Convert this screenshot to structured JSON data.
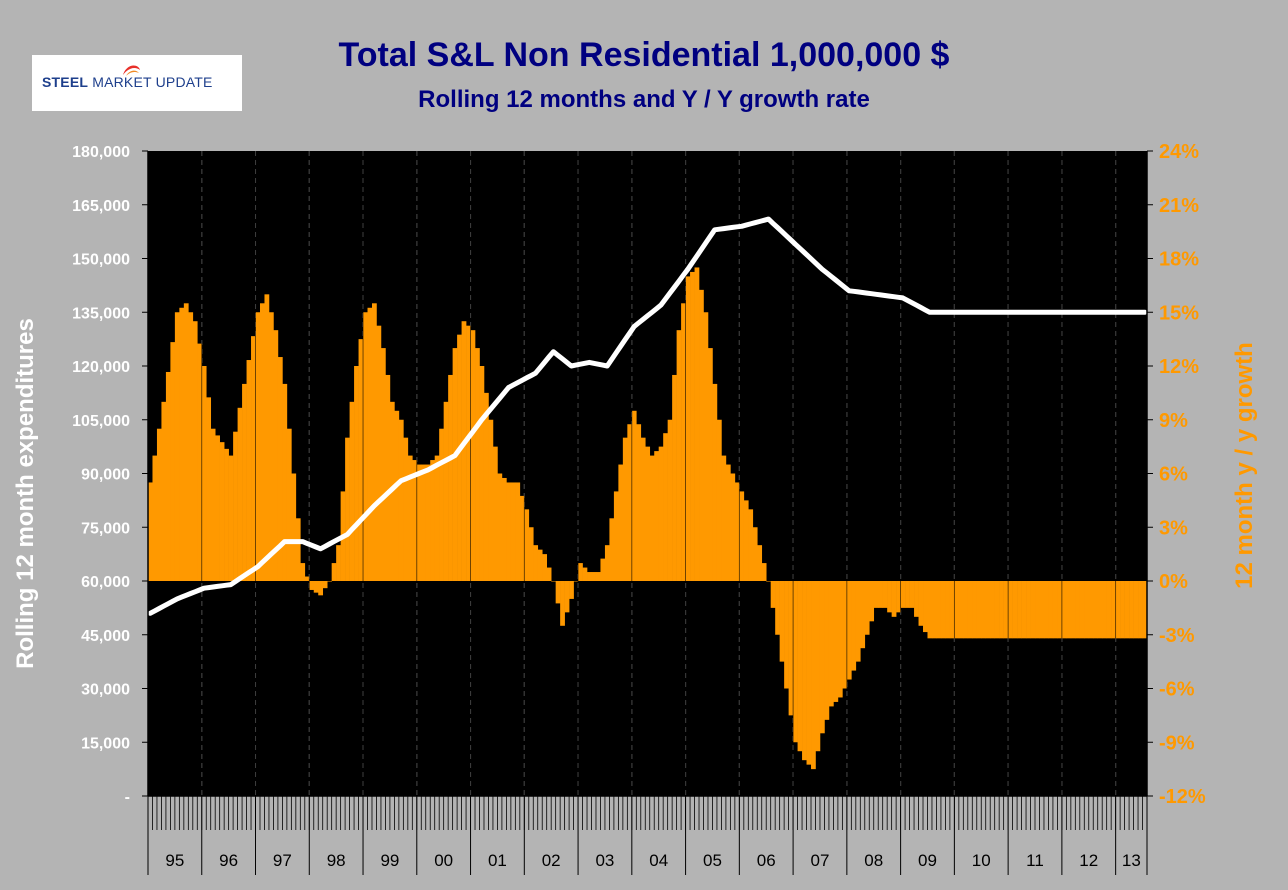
{
  "logo": {
    "bold": "STEEL",
    "light_1": "MARKET",
    "light_2": "UPDATE"
  },
  "chart_data": {
    "type": "bar+line",
    "title": "Total S&L Non Residential 1,000,000 $",
    "subtitle": "Rolling 12 months and Y / Y growth rate",
    "ylabel_left": "Rolling 12 month expenditures",
    "ylabel_right": "12 month y / y growth",
    "ylim_left": [
      0,
      180000
    ],
    "ylim_right": [
      -12,
      24
    ],
    "left_ticks": [
      "-",
      "15,000",
      "30,000",
      "45,000",
      "60,000",
      "75,000",
      "90,000",
      "105,000",
      "120,000",
      "135,000",
      "150,000",
      "165,000",
      "180,000"
    ],
    "right_ticks": [
      "-12%",
      "-9%",
      "-6%",
      "-3%",
      "0%",
      "3%",
      "6%",
      "9%",
      "12%",
      "15%",
      "18%",
      "21%",
      "24%"
    ],
    "years": [
      "95",
      "96",
      "97",
      "98",
      "99",
      "00",
      "01",
      "02",
      "03",
      "04",
      "05",
      "06",
      "07",
      "08",
      "09",
      "10",
      "11",
      "12",
      "13"
    ],
    "months_per_year": 12,
    "last_year_months": 7,
    "series": [
      {
        "name": "12 month y/y growth (%)",
        "axis": "right",
        "style": "bars",
        "color": "#ff9900",
        "anchors": [
          [
            0,
            5.5
          ],
          [
            3,
            10
          ],
          [
            6,
            15
          ],
          [
            8,
            15.5
          ],
          [
            10,
            14.5
          ],
          [
            12,
            12
          ],
          [
            14,
            8.5
          ],
          [
            18,
            7
          ],
          [
            21,
            11
          ],
          [
            24,
            15
          ],
          [
            26,
            16
          ],
          [
            28,
            14
          ],
          [
            30,
            11
          ],
          [
            32,
            6
          ],
          [
            34,
            1
          ],
          [
            36,
            -0.5
          ],
          [
            38,
            -0.8
          ],
          [
            40,
            0
          ],
          [
            42,
            2
          ],
          [
            44,
            8
          ],
          [
            46,
            12
          ],
          [
            48,
            15
          ],
          [
            50,
            15.5
          ],
          [
            52,
            13
          ],
          [
            54,
            10
          ],
          [
            56,
            9
          ],
          [
            58,
            7
          ],
          [
            60,
            6.5
          ],
          [
            62,
            6.5
          ],
          [
            64,
            7
          ],
          [
            66,
            10
          ],
          [
            68,
            13
          ],
          [
            70,
            14.5
          ],
          [
            72,
            14
          ],
          [
            74,
            12
          ],
          [
            76,
            9
          ],
          [
            78,
            6
          ],
          [
            80,
            5.5
          ],
          [
            82,
            5.5
          ],
          [
            84,
            4
          ],
          [
            86,
            2
          ],
          [
            88,
            1.5
          ],
          [
            90,
            0
          ],
          [
            92,
            -2.5
          ],
          [
            94,
            -1
          ],
          [
            96,
            1
          ],
          [
            98,
            0.5
          ],
          [
            100,
            0.5
          ],
          [
            102,
            2
          ],
          [
            104,
            5
          ],
          [
            106,
            8
          ],
          [
            108,
            9.5
          ],
          [
            110,
            8
          ],
          [
            112,
            7
          ],
          [
            114,
            7.5
          ],
          [
            116,
            9
          ],
          [
            118,
            14
          ],
          [
            120,
            17
          ],
          [
            122,
            17.5
          ],
          [
            124,
            15
          ],
          [
            126,
            11
          ],
          [
            128,
            7
          ],
          [
            130,
            6
          ],
          [
            132,
            5
          ],
          [
            134,
            4
          ],
          [
            136,
            2
          ],
          [
            138,
            0
          ],
          [
            140,
            -3
          ],
          [
            142,
            -6
          ],
          [
            144,
            -9
          ],
          [
            146,
            -10
          ],
          [
            148,
            -10.5
          ],
          [
            150,
            -8.5
          ],
          [
            152,
            -7
          ],
          [
            154,
            -6.5
          ],
          [
            156,
            -5.5
          ],
          [
            158,
            -4.5
          ],
          [
            160,
            -3
          ],
          [
            162,
            -1.5
          ],
          [
            164,
            -1.5
          ],
          [
            166,
            -2
          ],
          [
            168,
            -1.5
          ],
          [
            170,
            -1.5
          ],
          [
            172,
            -2.5
          ],
          [
            174,
            -3.2
          ]
        ]
      },
      {
        "name": "Rolling 12 month expenditures",
        "axis": "left",
        "style": "line",
        "color": "#ffffff",
        "anchors": [
          [
            0,
            51000
          ],
          [
            6,
            55000
          ],
          [
            12,
            58000
          ],
          [
            18,
            59000
          ],
          [
            24,
            64000
          ],
          [
            30,
            71000
          ],
          [
            34,
            71000
          ],
          [
            38,
            69000
          ],
          [
            44,
            73000
          ],
          [
            50,
            81000
          ],
          [
            56,
            88000
          ],
          [
            62,
            91000
          ],
          [
            68,
            95000
          ],
          [
            74,
            105000
          ],
          [
            80,
            114000
          ],
          [
            86,
            118000
          ],
          [
            90,
            124000
          ],
          [
            94,
            120000
          ],
          [
            98,
            121000
          ],
          [
            102,
            120000
          ],
          [
            108,
            131000
          ],
          [
            114,
            137000
          ],
          [
            120,
            147000
          ],
          [
            126,
            158000
          ],
          [
            132,
            159000
          ],
          [
            138,
            161000
          ],
          [
            144,
            154000
          ],
          [
            150,
            147000
          ],
          [
            156,
            141000
          ],
          [
            162,
            140000
          ],
          [
            168,
            139000
          ],
          [
            174,
            135000
          ]
        ]
      }
    ]
  }
}
